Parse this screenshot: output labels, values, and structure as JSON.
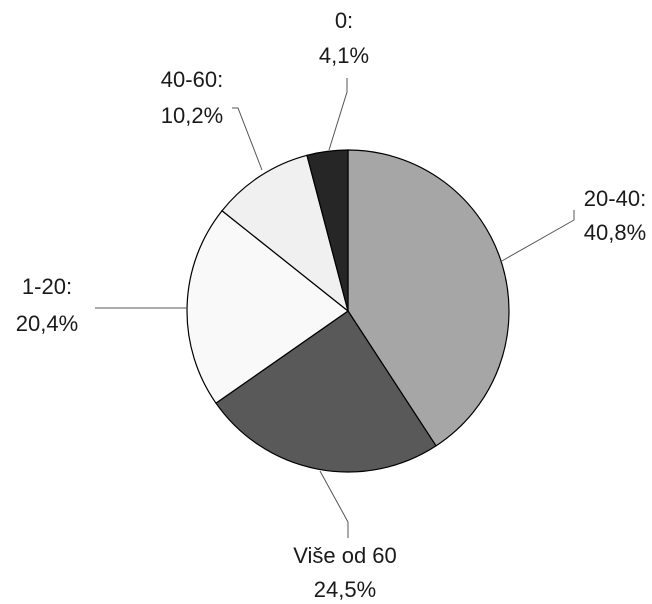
{
  "chart_data": {
    "type": "pie",
    "title": "",
    "slices": [
      {
        "category": "20-40:",
        "value_label": "40,8%",
        "value": 40.8,
        "color": "#a6a6a6"
      },
      {
        "category": "Više od 60",
        "value_label": "24,5%",
        "value": 24.5,
        "color": "#595959"
      },
      {
        "category": "1-20:",
        "value_label": "20,4%",
        "value": 20.4,
        "color": "#f9f9f9"
      },
      {
        "category": "40-60:",
        "value_label": "10,2%",
        "value": 10.2,
        "color": "#f0f0f0"
      },
      {
        "category": "0:",
        "value_label": "4,1%",
        "value": 4.1,
        "color": "#262626"
      }
    ],
    "legend": "none",
    "start_angle": "12 o'clock, clockwise"
  }
}
